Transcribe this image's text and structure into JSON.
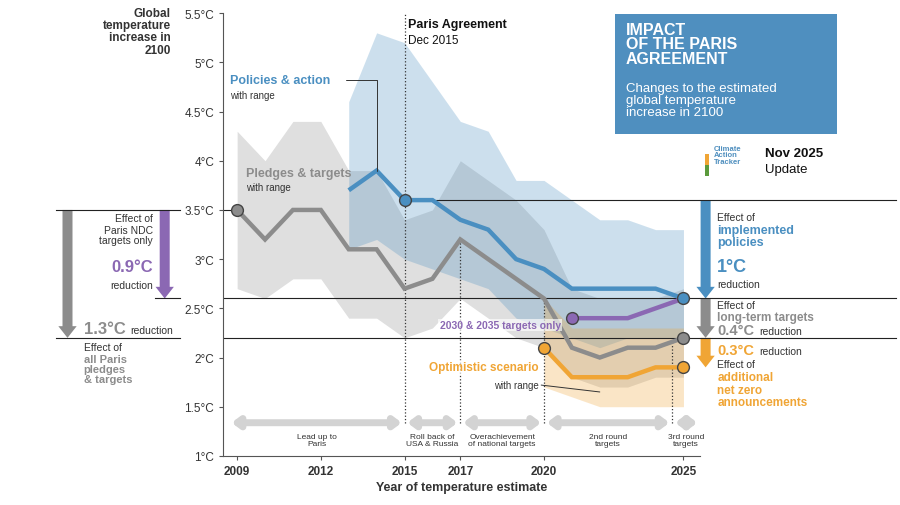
{
  "chart_data": {
    "type": "line",
    "title": "IMPACT\nOF THE PARIS\nAGREEMENT",
    "subtitle": "Changes to the estimated\nglobal temperature\nincrease in 2100",
    "source": "Climate\nAction\nTracker",
    "update": "Nov 2025",
    "update_label": "Update",
    "x_label": "Year of temperature estimate",
    "y_label": "Global\ntemperature\nincrease in\n2100",
    "xlim": [
      2008.5,
      2025.6
    ],
    "xticks": [
      2009,
      2012,
      2015,
      2017,
      2020,
      2025
    ],
    "ylim": [
      1,
      5.5
    ],
    "yticks": [
      {
        "value": 1,
        "label": "1°C"
      },
      {
        "value": 1.5,
        "label": "1.5°C"
      },
      {
        "value": 2,
        "label": "2°C"
      },
      {
        "value": 2.5,
        "label": "2.5°C"
      },
      {
        "value": 3,
        "label": "3°C"
      },
      {
        "value": 3.5,
        "label": "3.5°C"
      },
      {
        "value": 4,
        "label": "4°C"
      },
      {
        "value": 4.5,
        "label": "4.5°C"
      },
      {
        "value": 5,
        "label": "5°C"
      },
      {
        "value": 5.5,
        "label": "5.5°C"
      }
    ],
    "grid": false,
    "series": [
      {
        "name": "Pledges & targets",
        "range_label": "with range",
        "color": "#8c8c8c",
        "marker": "o",
        "markers_at": [
          2009,
          2025
        ],
        "x": [
          2009,
          2010,
          2011,
          2012,
          2013,
          2014,
          2015,
          2016,
          2017,
          2018,
          2019,
          2020,
          2021,
          2022,
          2023,
          2024,
          2025
        ],
        "values": [
          3.5,
          3.2,
          3.5,
          3.5,
          3.1,
          3.1,
          2.7,
          2.8,
          3.2,
          3.0,
          2.8,
          2.6,
          2.1,
          2.0,
          2.1,
          2.1,
          2.2
        ],
        "lower": [
          2.7,
          2.6,
          2.8,
          2.8,
          2.4,
          2.4,
          2.2,
          2.3,
          2.6,
          2.4,
          2.2,
          2.1,
          1.8,
          1.7,
          1.7,
          1.8,
          1.8
        ],
        "upper": [
          4.3,
          4.0,
          4.4,
          4.4,
          3.9,
          3.9,
          3.4,
          3.5,
          4.0,
          3.8,
          3.6,
          3.3,
          2.7,
          2.6,
          2.6,
          2.6,
          2.7
        ]
      },
      {
        "name": "Policies & action",
        "range_label": "with range",
        "color": "#4a8fc1",
        "marker": "o",
        "markers_at": [
          2015,
          2025
        ],
        "x": [
          2013,
          2014,
          2015,
          2016,
          2017,
          2018,
          2019,
          2020,
          2021,
          2022,
          2023,
          2024,
          2025
        ],
        "values": [
          3.7,
          3.9,
          3.6,
          3.6,
          3.4,
          3.3,
          3.0,
          2.9,
          2.7,
          2.7,
          2.7,
          2.7,
          2.6
        ],
        "lower": [
          3.1,
          3.2,
          3.0,
          2.9,
          2.8,
          2.7,
          2.4,
          2.3,
          2.2,
          2.1,
          2.2,
          2.2,
          2.2
        ],
        "upper": [
          4.6,
          5.3,
          5.2,
          4.8,
          4.4,
          4.3,
          3.8,
          3.8,
          3.6,
          3.4,
          3.4,
          3.3,
          3.3
        ]
      },
      {
        "name": "2030 & 2035 targets only",
        "color": "#8b68b3",
        "marker": "o",
        "markers_at": [
          2021
        ],
        "x": [
          2021,
          2022,
          2023,
          2024,
          2025
        ],
        "values": [
          2.4,
          2.4,
          2.4,
          2.5,
          2.6
        ]
      },
      {
        "name": "Optimistic scenario",
        "range_label": "with range",
        "color": "#f0a535",
        "marker": "o",
        "markers_at": [
          2020,
          2025
        ],
        "x": [
          2020,
          2021,
          2022,
          2023,
          2024,
          2025
        ],
        "values": [
          2.1,
          1.8,
          1.8,
          1.8,
          1.9,
          1.9
        ],
        "lower": [
          1.7,
          1.6,
          1.5,
          1.5,
          1.5,
          1.5
        ],
        "upper": [
          2.6,
          2.3,
          2.3,
          2.3,
          2.3,
          2.3
        ]
      }
    ],
    "annotation": {
      "x": 2015,
      "label": "Paris Agreement",
      "date": "Dec 2015"
    },
    "effects": [
      {
        "intro": "Effect of",
        "name": "Paris NDC\ntargets only",
        "value": 0.9,
        "label": "0.9°C",
        "suffix": "reduction",
        "from": 3.5,
        "color": "#8b68b3"
      },
      {
        "intro": "Effect of",
        "name": "all Paris\npledges\n& targets",
        "value": 1.3,
        "label": "1.3°C",
        "suffix": "reduction",
        "from": 3.5,
        "color": "#8c8c8c"
      },
      {
        "intro": "Effect of",
        "name": "implemented\npolicies",
        "value": 1,
        "label": "1°C",
        "suffix": "reduction",
        "from": 3.6,
        "color": "#4a8fc1"
      },
      {
        "intro": "Effect of",
        "name": "long-term targets",
        "value": 0.4,
        "label": "0.4°C",
        "suffix": "reduction",
        "from": 2.6,
        "color": "#8c8c8c"
      },
      {
        "intro": "Effect of",
        "name": "additional\nnet zero\nannouncements",
        "value": 0.3,
        "label": "0.3°C",
        "suffix": "reduction",
        "from": 2.2,
        "color": "#f0a535"
      }
    ],
    "periods": [
      {
        "start": 2008.7,
        "end": 2015,
        "label": "Lead up to\nParis"
      },
      {
        "start": 2015,
        "end": 2017,
        "label": "Roll back of\nUSA & Russia"
      },
      {
        "start": 2017,
        "end": 2020,
        "label": "Overachievement\nof national targets"
      },
      {
        "start": 2020,
        "end": 2024.6,
        "label": "2nd round\ntargets"
      },
      {
        "start": 2024.6,
        "end": 2025.6,
        "label": "3rd round\ntargets"
      }
    ]
  }
}
